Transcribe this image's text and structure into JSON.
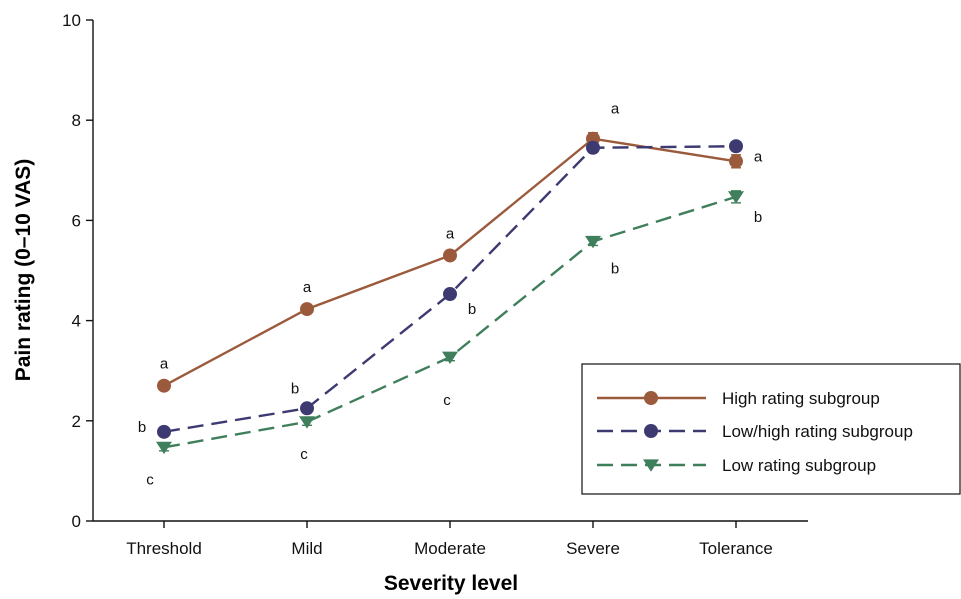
{
  "chart_data": {
    "type": "line",
    "xlabel": "Severity level",
    "ylabel": "Pain rating (0–10 VAS)",
    "categories": [
      "Threshold",
      "Mild",
      "Moderate",
      "Severe",
      "Tolerance"
    ],
    "ylim": [
      0,
      10
    ],
    "yticks": [
      0,
      2,
      4,
      6,
      8,
      10
    ],
    "grid": false,
    "legend_position": "bottom-right",
    "series": [
      {
        "name": "High rating subgroup",
        "values": [
          2.7,
          4.23,
          5.3,
          7.63,
          7.18
        ],
        "errors": [
          0.08,
          0.07,
          0.07,
          0.12,
          0.13
        ],
        "color": "#9c5a3c",
        "marker": "circle",
        "line": "solid",
        "labels": [
          "a",
          "a",
          "a",
          "a",
          "a"
        ]
      },
      {
        "name": "Low/high rating subgroup",
        "values": [
          1.78,
          2.25,
          4.53,
          7.45,
          7.48
        ],
        "errors": [
          0.07,
          0.07,
          0.08,
          0.08,
          0.08
        ],
        "color": "#3d3a72",
        "marker": "circle",
        "line": "dashed",
        "labels": [
          "b",
          "b",
          "b",
          "a",
          "a"
        ]
      },
      {
        "name": "Low rating subgroup",
        "values": [
          1.47,
          1.98,
          3.27,
          5.58,
          6.47
        ],
        "errors": [
          0.07,
          0.07,
          0.07,
          0.08,
          0.12
        ],
        "color": "#3f7f5c",
        "marker": "triangle-down",
        "line": "dashed",
        "labels": [
          "c",
          "c",
          "c",
          "b",
          "b"
        ]
      }
    ]
  }
}
